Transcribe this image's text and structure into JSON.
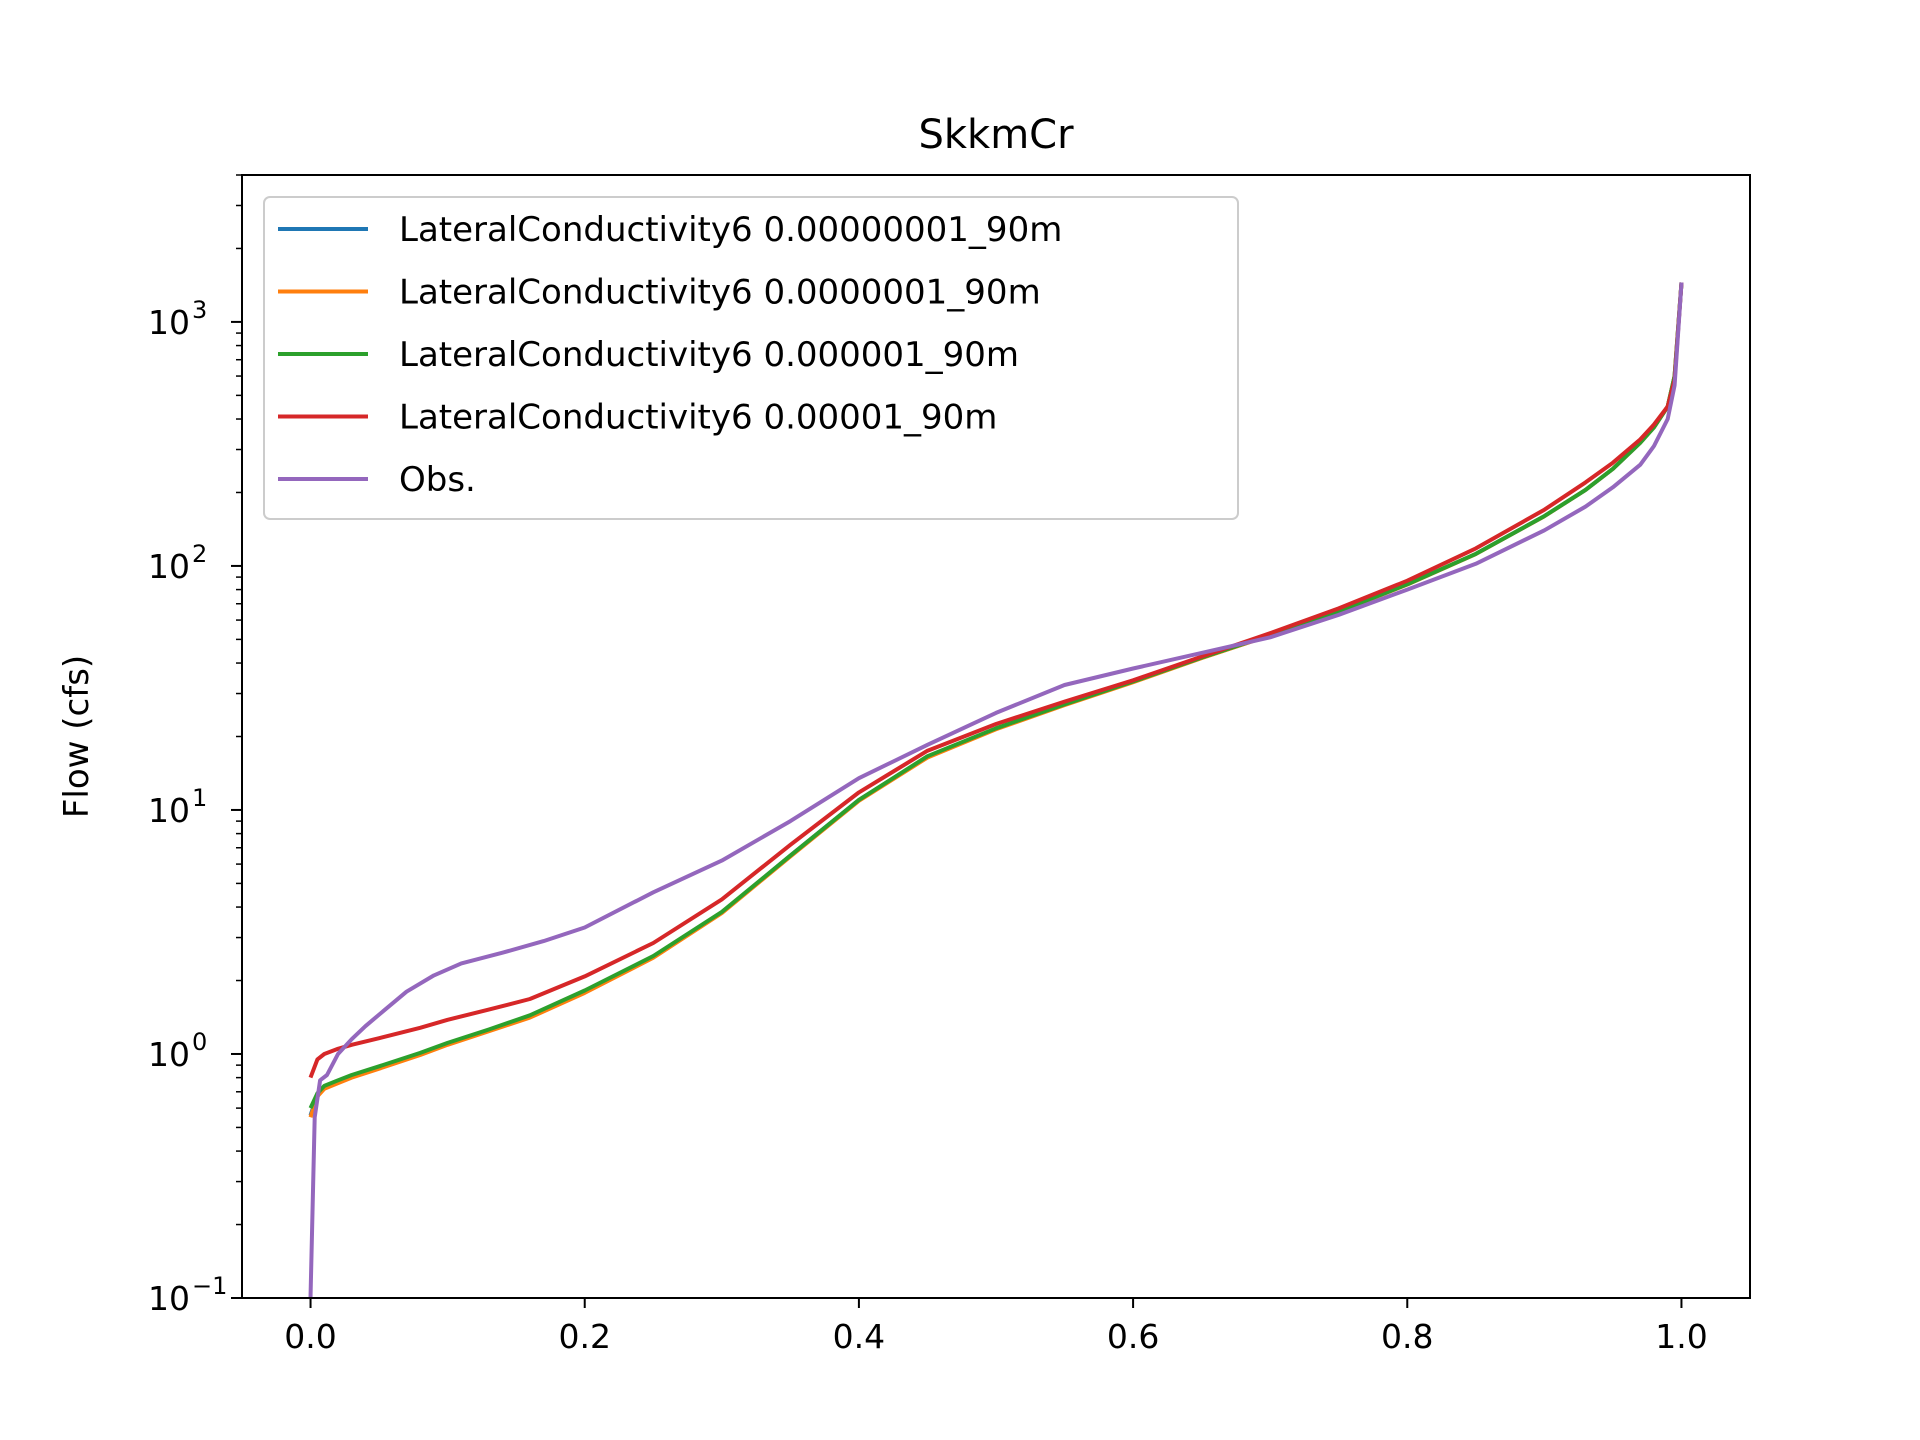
{
  "chart_data": {
    "type": "line",
    "title": "SkkmCr",
    "xlabel": "",
    "ylabel": "Flow (cfs)",
    "xlim": [
      -0.05,
      1.05
    ],
    "ylim": [
      0.1,
      4000
    ],
    "yscale": "log",
    "x_ticks": [
      0.0,
      0.2,
      0.4,
      0.6,
      0.8,
      1.0
    ],
    "x_tick_labels": [
      "0.0",
      "0.2",
      "0.4",
      "0.6",
      "0.8",
      "1.0"
    ],
    "y_ticks": [
      {
        "value": 0.1,
        "base": "10",
        "exp": "−1"
      },
      {
        "value": 1,
        "base": "10",
        "exp": "0"
      },
      {
        "value": 10,
        "base": "10",
        "exp": "1"
      },
      {
        "value": 100,
        "base": "10",
        "exp": "2"
      },
      {
        "value": 1000,
        "base": "10",
        "exp": "3"
      }
    ],
    "grid": false,
    "legend_position": "upper-left",
    "series": [
      {
        "name": "LateralConductivity6 0.00000001_90m",
        "color": "#1f77b4",
        "x": [
          0.0,
          0.005,
          0.01,
          0.02,
          0.03,
          0.05,
          0.08,
          0.1,
          0.13,
          0.16,
          0.2,
          0.25,
          0.3,
          0.35,
          0.4,
          0.45,
          0.5,
          0.55,
          0.6,
          0.65,
          0.7,
          0.75,
          0.8,
          0.85,
          0.9,
          0.93,
          0.95,
          0.97,
          0.98,
          0.99,
          0.995,
          1.0
        ],
        "y": [
          0.56,
          0.68,
          0.73,
          0.77,
          0.81,
          0.88,
          1.0,
          1.1,
          1.25,
          1.42,
          1.8,
          2.5,
          3.8,
          6.5,
          11.0,
          16.5,
          21.5,
          27.0,
          33.5,
          42.0,
          52.0,
          65.0,
          84.0,
          112.0,
          160.0,
          205.0,
          250.0,
          320.0,
          370.0,
          450.0,
          600.0,
          1450.0
        ]
      },
      {
        "name": "LateralConductivity6 0.0000001_90m",
        "color": "#ff7f0e",
        "x": [
          0.0,
          0.005,
          0.01,
          0.02,
          0.03,
          0.05,
          0.08,
          0.1,
          0.13,
          0.16,
          0.2,
          0.25,
          0.3,
          0.35,
          0.4,
          0.45,
          0.5,
          0.55,
          0.6,
          0.65,
          0.7,
          0.75,
          0.8,
          0.85,
          0.9,
          0.93,
          0.95,
          0.97,
          0.98,
          0.99,
          0.995,
          1.0
        ],
        "y": [
          0.55,
          0.67,
          0.72,
          0.76,
          0.8,
          0.87,
          0.99,
          1.09,
          1.24,
          1.41,
          1.78,
          2.48,
          3.78,
          6.45,
          10.9,
          16.4,
          21.4,
          26.9,
          33.4,
          41.9,
          51.9,
          64.9,
          83.9,
          111.9,
          159.9,
          205.0,
          250.0,
          320.0,
          370.0,
          450.0,
          600.0,
          1450.0
        ]
      },
      {
        "name": "LateralConductivity6 0.000001_90m",
        "color": "#2ca02c",
        "x": [
          0.0,
          0.005,
          0.01,
          0.02,
          0.03,
          0.05,
          0.08,
          0.1,
          0.13,
          0.16,
          0.2,
          0.25,
          0.3,
          0.35,
          0.4,
          0.45,
          0.5,
          0.55,
          0.6,
          0.65,
          0.7,
          0.75,
          0.8,
          0.85,
          0.9,
          0.93,
          0.95,
          0.97,
          0.98,
          0.99,
          0.995,
          1.0
        ],
        "y": [
          0.6,
          0.69,
          0.74,
          0.78,
          0.82,
          0.89,
          1.01,
          1.11,
          1.26,
          1.44,
          1.82,
          2.52,
          3.82,
          6.5,
          11.0,
          16.6,
          21.6,
          27.1,
          33.6,
          42.1,
          52.1,
          65.1,
          84.1,
          112.0,
          160.0,
          205.0,
          250.0,
          320.0,
          370.0,
          450.0,
          600.0,
          1450.0
        ]
      },
      {
        "name": "LateralConductivity6 0.00001_90m",
        "color": "#d62728",
        "x": [
          0.0,
          0.005,
          0.01,
          0.02,
          0.03,
          0.05,
          0.08,
          0.1,
          0.13,
          0.16,
          0.2,
          0.25,
          0.3,
          0.35,
          0.4,
          0.45,
          0.5,
          0.55,
          0.6,
          0.65,
          0.7,
          0.75,
          0.8,
          0.85,
          0.9,
          0.93,
          0.95,
          0.97,
          0.98,
          0.99,
          0.995,
          1.0
        ],
        "y": [
          0.8,
          0.95,
          1.0,
          1.05,
          1.09,
          1.16,
          1.28,
          1.38,
          1.52,
          1.68,
          2.08,
          2.85,
          4.3,
          7.2,
          11.8,
          17.5,
          22.5,
          27.8,
          34.0,
          42.5,
          53.0,
          67.0,
          87.0,
          118.0,
          170.0,
          220.0,
          265.0,
          330.0,
          380.0,
          450.0,
          580.0,
          1450.0
        ]
      },
      {
        "name": "Obs.",
        "color": "#9467bd",
        "x": [
          0.0,
          0.003,
          0.007,
          0.012,
          0.02,
          0.03,
          0.04,
          0.05,
          0.07,
          0.09,
          0.11,
          0.14,
          0.17,
          0.2,
          0.25,
          0.3,
          0.35,
          0.4,
          0.45,
          0.5,
          0.55,
          0.6,
          0.65,
          0.7,
          0.75,
          0.8,
          0.85,
          0.9,
          0.93,
          0.95,
          0.97,
          0.98,
          0.99,
          0.995,
          1.0
        ],
        "y": [
          0.1,
          0.55,
          0.78,
          0.82,
          1.0,
          1.15,
          1.3,
          1.45,
          1.8,
          2.1,
          2.35,
          2.6,
          2.9,
          3.3,
          4.6,
          6.2,
          9.0,
          13.5,
          18.5,
          25.0,
          32.5,
          38.0,
          44.0,
          51.0,
          63.0,
          80.0,
          102.0,
          140.0,
          175.0,
          210.0,
          260.0,
          310.0,
          400.0,
          550.0,
          1450.0
        ]
      }
    ]
  }
}
